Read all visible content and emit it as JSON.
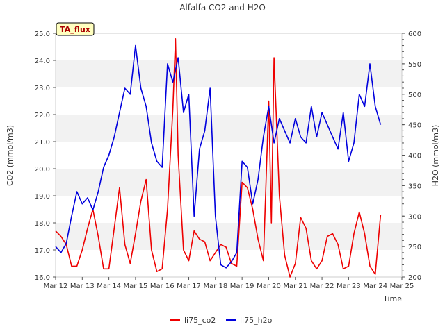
{
  "chart_data": {
    "type": "line",
    "title": "Alfalfa CO2 and H2O",
    "xlabel": "Time",
    "ylabel": "CO2 (mmol/m3)",
    "ylabel_right": "H2O (mmol/m3)",
    "annotation": "TA_flux",
    "x_ticks": [
      "Mar 12",
      "Mar 13",
      "Mar 14",
      "Mar 15",
      "Mar 16",
      "Mar 17",
      "Mar 18",
      "Mar 19",
      "Mar 20",
      "Mar 21",
      "Mar 22",
      "Mar 23",
      "Mar 24",
      "Mar 25"
    ],
    "xlim": [
      12,
      25
    ],
    "ylim": [
      16.0,
      25.0
    ],
    "ylim_right": [
      200,
      600
    ],
    "y_ticks": [
      "16.0",
      "17.0",
      "18.0",
      "19.0",
      "20.0",
      "21.0",
      "22.0",
      "23.0",
      "24.0",
      "25.0"
    ],
    "y_ticks_right": [
      "200",
      "250",
      "300",
      "350",
      "400",
      "450",
      "500",
      "550",
      "600"
    ],
    "grid": "horizontal-bands",
    "legend_position": "bottom-center",
    "series": [
      {
        "name": "li75_co2",
        "color": "#ee0000",
        "axis": "left",
        "x": [
          12.0,
          12.2,
          12.4,
          12.6,
          12.8,
          13.0,
          13.2,
          13.4,
          13.6,
          13.8,
          14.0,
          14.2,
          14.4,
          14.6,
          14.8,
          15.0,
          15.2,
          15.4,
          15.6,
          15.8,
          16.0,
          16.2,
          16.4,
          16.5,
          16.6,
          16.8,
          17.0,
          17.2,
          17.4,
          17.6,
          17.8,
          18.0,
          18.2,
          18.4,
          18.6,
          18.8,
          19.0,
          19.2,
          19.4,
          19.6,
          19.8,
          20.0,
          20.1,
          20.2,
          20.4,
          20.6,
          20.8,
          21.0,
          21.2,
          21.4,
          21.6,
          21.8,
          22.0,
          22.2,
          22.4,
          22.6,
          22.8,
          23.0,
          23.2,
          23.4,
          23.6,
          23.8,
          24.0,
          24.2
        ],
        "y": [
          17.7,
          17.5,
          17.2,
          16.4,
          16.4,
          17.0,
          17.8,
          18.5,
          17.5,
          16.3,
          16.3,
          17.8,
          19.3,
          17.2,
          16.5,
          17.6,
          18.8,
          19.6,
          17.0,
          16.2,
          16.3,
          18.5,
          22.2,
          24.8,
          20.5,
          17.0,
          16.6,
          17.7,
          17.4,
          17.3,
          16.6,
          16.9,
          17.2,
          17.1,
          16.5,
          16.4,
          19.5,
          19.3,
          18.5,
          17.4,
          16.6,
          22.5,
          18.0,
          24.1,
          19.0,
          16.8,
          16.0,
          16.5,
          18.2,
          17.8,
          16.6,
          16.3,
          16.6,
          17.5,
          17.6,
          17.2,
          16.3,
          16.4,
          17.6,
          18.4,
          17.6,
          16.4,
          16.1,
          18.3
        ]
      },
      {
        "name": "li75_h2o",
        "color": "#0000dd",
        "axis": "right",
        "x": [
          12.0,
          12.2,
          12.4,
          12.6,
          12.8,
          13.0,
          13.2,
          13.4,
          13.6,
          13.8,
          14.0,
          14.2,
          14.4,
          14.6,
          14.8,
          15.0,
          15.2,
          15.4,
          15.6,
          15.8,
          16.0,
          16.2,
          16.4,
          16.6,
          16.8,
          17.0,
          17.2,
          17.4,
          17.6,
          17.8,
          18.0,
          18.2,
          18.4,
          18.6,
          18.8,
          19.0,
          19.2,
          19.4,
          19.6,
          19.8,
          20.0,
          20.2,
          20.4,
          20.6,
          20.8,
          21.0,
          21.2,
          21.4,
          21.6,
          21.8,
          22.0,
          22.2,
          22.4,
          22.6,
          22.8,
          23.0,
          23.2,
          23.4,
          23.6,
          23.8,
          24.0,
          24.2
        ],
        "y": [
          250,
          240,
          255,
          300,
          340,
          320,
          330,
          310,
          340,
          380,
          400,
          430,
          470,
          510,
          500,
          580,
          510,
          480,
          420,
          390,
          380,
          550,
          520,
          560,
          470,
          500,
          300,
          410,
          440,
          510,
          300,
          220,
          215,
          225,
          240,
          390,
          380,
          320,
          360,
          430,
          480,
          420,
          460,
          440,
          420,
          460,
          430,
          420,
          480,
          430,
          470,
          450,
          430,
          410,
          470,
          390,
          420,
          500,
          480,
          550,
          480,
          450
        ]
      }
    ]
  }
}
